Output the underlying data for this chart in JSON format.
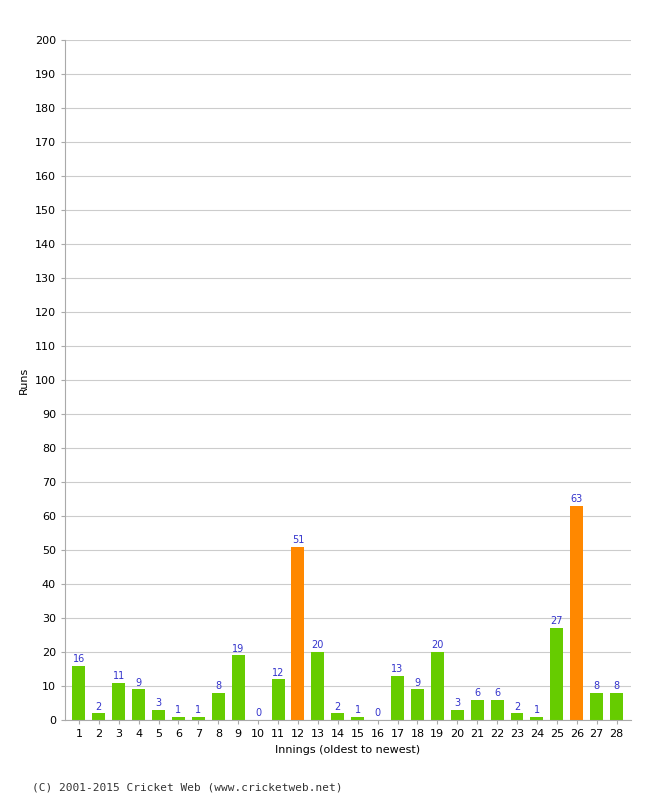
{
  "innings": [
    1,
    2,
    3,
    4,
    5,
    6,
    7,
    8,
    9,
    10,
    11,
    12,
    13,
    14,
    15,
    16,
    17,
    18,
    19,
    20,
    21,
    22,
    23,
    24,
    25,
    26,
    27,
    28
  ],
  "values": [
    16,
    2,
    11,
    9,
    3,
    1,
    1,
    8,
    19,
    0,
    12,
    51,
    20,
    2,
    1,
    0,
    13,
    9,
    20,
    3,
    6,
    6,
    2,
    1,
    27,
    63,
    8,
    8
  ],
  "colors": [
    "#66cc00",
    "#66cc00",
    "#66cc00",
    "#66cc00",
    "#66cc00",
    "#66cc00",
    "#66cc00",
    "#66cc00",
    "#66cc00",
    "#66cc00",
    "#66cc00",
    "#ff8800",
    "#66cc00",
    "#66cc00",
    "#66cc00",
    "#66cc00",
    "#66cc00",
    "#66cc00",
    "#66cc00",
    "#66cc00",
    "#66cc00",
    "#66cc00",
    "#66cc00",
    "#66cc00",
    "#66cc00",
    "#ff8800",
    "#66cc00",
    "#66cc00"
  ],
  "xlabel": "Innings (oldest to newest)",
  "ylabel": "Runs",
  "ylim": [
    0,
    200
  ],
  "yticks": [
    0,
    10,
    20,
    30,
    40,
    50,
    60,
    70,
    80,
    90,
    100,
    110,
    120,
    130,
    140,
    150,
    160,
    170,
    180,
    190,
    200
  ],
  "footer": "(C) 2001-2015 Cricket Web (www.cricketweb.net)",
  "background_color": "#ffffff",
  "grid_color": "#cccccc",
  "label_color": "#3333cc",
  "bar_label_fontsize": 7,
  "tick_fontsize": 8,
  "axis_label_fontsize": 8,
  "footer_fontsize": 8
}
